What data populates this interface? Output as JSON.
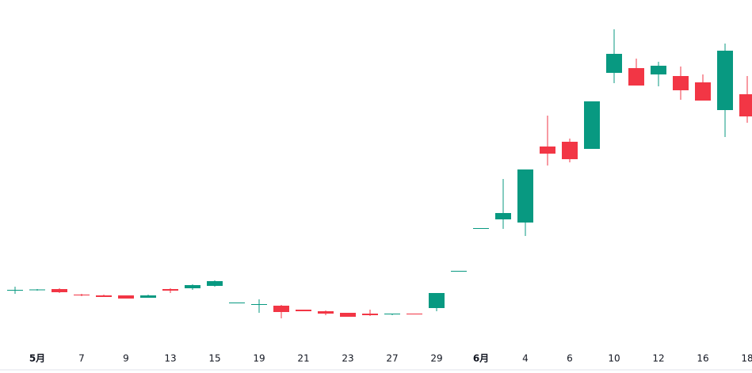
{
  "chart_data": {
    "type": "candlestick",
    "categories": [
      null,
      "5月",
      null,
      "7",
      null,
      "9",
      null,
      "13",
      null,
      "15",
      null,
      "19",
      null,
      "21",
      null,
      "23",
      null,
      "27",
      null,
      "29",
      null,
      "6月",
      null,
      "4",
      null,
      "6",
      null,
      "10",
      null,
      "12",
      null,
      "16",
      null,
      "18"
    ],
    "open": [
      105,
      105,
      106,
      99,
      98,
      98,
      95,
      106,
      107,
      110,
      89,
      87,
      85,
      80,
      78,
      76,
      75,
      74,
      75,
      82,
      129,
      183,
      194,
      190,
      286,
      292,
      283,
      379,
      385,
      377,
      375,
      367,
      332,
      352
    ],
    "high": [
      109,
      106,
      107,
      100,
      99,
      98,
      99,
      107,
      112,
      117,
      89,
      93,
      86,
      80,
      79,
      76,
      80,
      75,
      75,
      101,
      129,
      183,
      245,
      257,
      325,
      296,
      343,
      434,
      397,
      393,
      387,
      377,
      416,
      375
    ],
    "low": [
      100,
      104,
      101,
      97,
      96,
      94,
      95,
      101,
      105,
      109,
      89,
      76,
      69,
      78,
      73,
      71,
      72,
      73,
      74,
      78,
      129,
      183,
      182,
      173,
      262,
      266,
      283,
      366,
      363,
      362,
      345,
      344,
      298,
      316
    ],
    "close": [
      105,
      105.5,
      102,
      98,
      96,
      94,
      98,
      104,
      111,
      116,
      89,
      87,
      77,
      78,
      75,
      71,
      73,
      75,
      74,
      101,
      129,
      183,
      202,
      257,
      277,
      270,
      343,
      403,
      363,
      388,
      357,
      344,
      407,
      324
    ],
    "up_color": "#089981",
    "down_color": "#f23645",
    "ylim": [
      0,
      471
    ]
  }
}
